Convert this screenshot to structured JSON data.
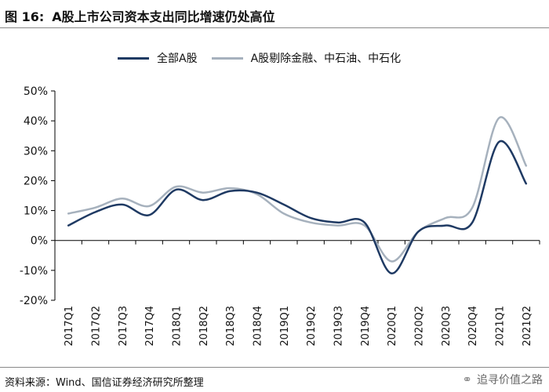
{
  "figure": {
    "number": "图 16:",
    "title": "A股上市公司资本支出同比增速仍处高位"
  },
  "source": "资料来源：Wind、国信证券经济研究所整理",
  "watermark": {
    "text": "追寻价值之路",
    "icon": "wechat-icon"
  },
  "colors": {
    "series1": "#1f3a63",
    "series2": "#a6b1bd",
    "axis": "#000000"
  },
  "chart_data": {
    "type": "line",
    "categories": [
      "2017Q1",
      "2017Q2",
      "2017Q3",
      "2017Q4",
      "2018Q1",
      "2018Q2",
      "2018Q3",
      "2018Q4",
      "2019Q1",
      "2019Q2",
      "2019Q3",
      "2019Q4",
      "2020Q1",
      "2020Q2",
      "2020Q3",
      "2020Q4",
      "2021Q1",
      "2021Q2"
    ],
    "series": [
      {
        "name": "全部A股",
        "values": [
          5,
          9.5,
          12,
          8.5,
          17,
          13.5,
          16.5,
          16,
          12,
          7.5,
          6,
          6,
          -11,
          3,
          5,
          6,
          33,
          19
        ]
      },
      {
        "name": "A股剔除金融、中石油、中石化",
        "values": [
          9,
          11,
          14,
          11.5,
          18,
          16,
          17.5,
          15.5,
          9,
          6,
          5,
          5,
          -7,
          3,
          7.5,
          11,
          41,
          25
        ]
      }
    ],
    "ylim": [
      -20,
      50
    ],
    "yticks": [
      "-20%",
      "-10%",
      "0%",
      "10%",
      "20%",
      "30%",
      "40%",
      "50%"
    ],
    "ytick_values": [
      -20,
      -10,
      0,
      10,
      20,
      30,
      40,
      50
    ],
    "legend_position": "top-center",
    "grid": false
  }
}
